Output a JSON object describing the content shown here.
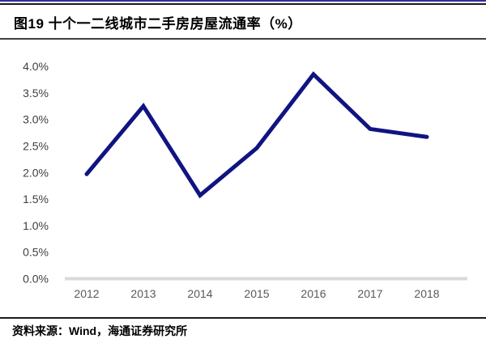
{
  "header": {
    "title": "图19 十个一二线城市二手房房屋流通率（%）"
  },
  "footer": {
    "source": "资料来源：Wind，海通证券研究所"
  },
  "colors": {
    "top_accent": "#2e2e9e",
    "rule_black": "#1a1a1a",
    "title_text": "#000000"
  },
  "chart_data": {
    "type": "line",
    "title": "图19 十个一二线城市二手房房屋流通率（%）",
    "categories": [
      "2012",
      "2013",
      "2014",
      "2015",
      "2016",
      "2017",
      "2018"
    ],
    "series": [
      {
        "name": "十个一二线城市二手房房屋流通率",
        "values": [
          1.97,
          3.25,
          1.57,
          2.46,
          3.85,
          2.82,
          2.67
        ]
      }
    ],
    "unit": "%",
    "xlabel": "",
    "ylabel": "",
    "ylim": [
      0,
      4.0
    ],
    "ytick_step": 0.5,
    "ytick_labels": [
      "0.0%",
      "0.5%",
      "1.0%",
      "1.5%",
      "2.0%",
      "2.5%",
      "3.0%",
      "3.5%",
      "4.0%"
    ],
    "grid": false,
    "legend": "none",
    "line_color": "#101482",
    "line_width": 5,
    "baseline_color": "#d9d9d9"
  }
}
